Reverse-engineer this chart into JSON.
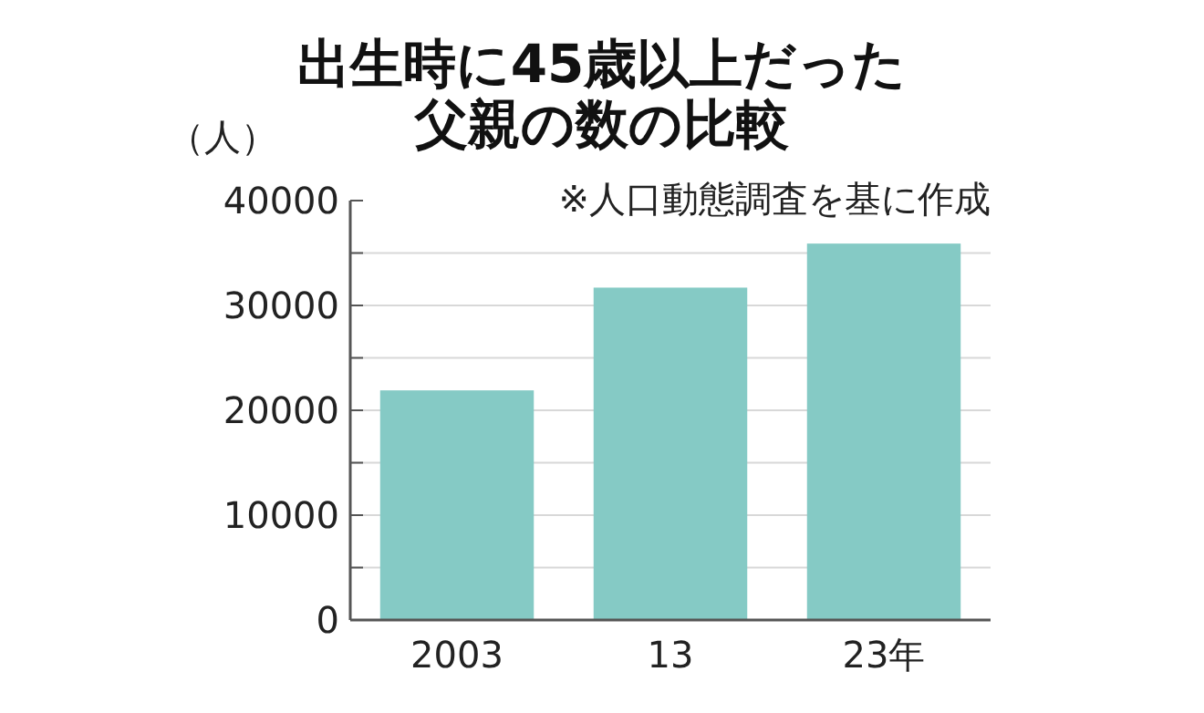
{
  "chart_data": {
    "type": "bar",
    "title": "出生時に45歳以上だった",
    "subtitle": "父親の数の比較",
    "ylabel": "（人）",
    "annotations": [
      "※人口動態調査を基に作成"
    ],
    "categories": [
      "2003",
      "13",
      "23年"
    ],
    "values": [
      21900,
      31700,
      35900
    ],
    "color": "#85cac5",
    "ylim": [
      0,
      40000
    ],
    "yticks": [
      0,
      {
        "value": 5000,
        "label": null
      },
      10000,
      {
        "value": 15000,
        "label": null
      },
      20000,
      {
        "value": 25000,
        "label": null
      },
      30000,
      {
        "value": 35000,
        "label": null
      },
      40000
    ],
    "grid": "y"
  }
}
